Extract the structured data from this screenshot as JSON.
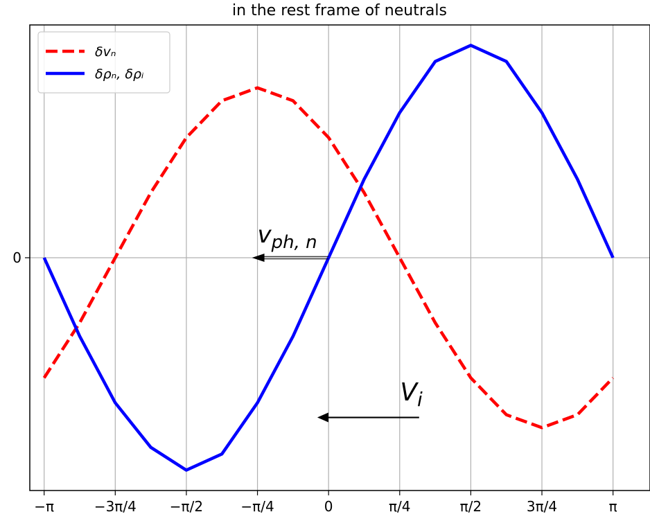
{
  "chart_data": {
    "type": "line",
    "title": "in the rest frame of neutrals",
    "xlabel": "",
    "ylabel": "",
    "xlim": [
      -3.3,
      3.55
    ],
    "ylim": [
      -1.37,
      1.37
    ],
    "grid": true,
    "legend_position": "top-left",
    "x_ticks": [
      {
        "value": -3.14159,
        "label": "−π"
      },
      {
        "value": -2.35619,
        "label": "−3π/4"
      },
      {
        "value": -1.5708,
        "label": "−π/2"
      },
      {
        "value": -0.7854,
        "label": "−π/4"
      },
      {
        "value": 0,
        "label": "0"
      },
      {
        "value": 0.7854,
        "label": "π/4"
      },
      {
        "value": 1.5708,
        "label": "π/2"
      },
      {
        "value": 2.35619,
        "label": "3π/4"
      },
      {
        "value": 3.14159,
        "label": "π"
      }
    ],
    "y_ticks": [
      {
        "value": 0,
        "label": "0"
      }
    ],
    "series": [
      {
        "name": "δv_n",
        "legend_label": "δvₙ",
        "color": "#ff0000",
        "style": "dashed",
        "x": [
          -3.1416,
          -2.7489,
          -2.3562,
          -1.9635,
          -1.5708,
          -1.1781,
          -0.7854,
          -0.3927,
          0.0,
          0.3927,
          0.7854,
          1.1781,
          1.5708,
          1.9635,
          2.3562,
          2.7489,
          3.1416
        ],
        "y": [
          -0.707,
          -0.383,
          0.0,
          0.383,
          0.707,
          0.924,
          1.0,
          0.924,
          0.707,
          0.383,
          0.0,
          -0.383,
          -0.707,
          -0.924,
          -1.0,
          -0.924,
          -0.707
        ]
      },
      {
        "name": "δρ_n, δρ_i",
        "legend_label": "δρₙ, δρᵢ",
        "color": "#0000ff",
        "style": "solid",
        "x": [
          -3.1416,
          -2.7489,
          -2.3562,
          -1.9635,
          -1.5708,
          -1.1781,
          -0.7854,
          -0.3927,
          0.0,
          0.3927,
          0.7854,
          1.1781,
          1.5708,
          1.9635,
          2.3562,
          2.7489,
          3.1416
        ],
        "y": [
          0.0,
          -0.462,
          -0.854,
          -1.116,
          -1.25,
          -1.155,
          -0.854,
          -0.462,
          0.0,
          0.462,
          0.854,
          1.155,
          1.25,
          1.155,
          0.854,
          0.462,
          0.0
        ]
      }
    ],
    "annotations": [
      {
        "text": "v",
        "subscript": "ph, n",
        "x_from": 0.0,
        "x_to": -0.7854,
        "y": 0.0,
        "text_x": -0.7854,
        "text_y": 0.09
      },
      {
        "text": "V",
        "subscript": "i",
        "x_from": 1.0,
        "x_to": -0.0785,
        "y": -0.94,
        "text_x": 0.79,
        "text_y": -0.84
      }
    ]
  }
}
